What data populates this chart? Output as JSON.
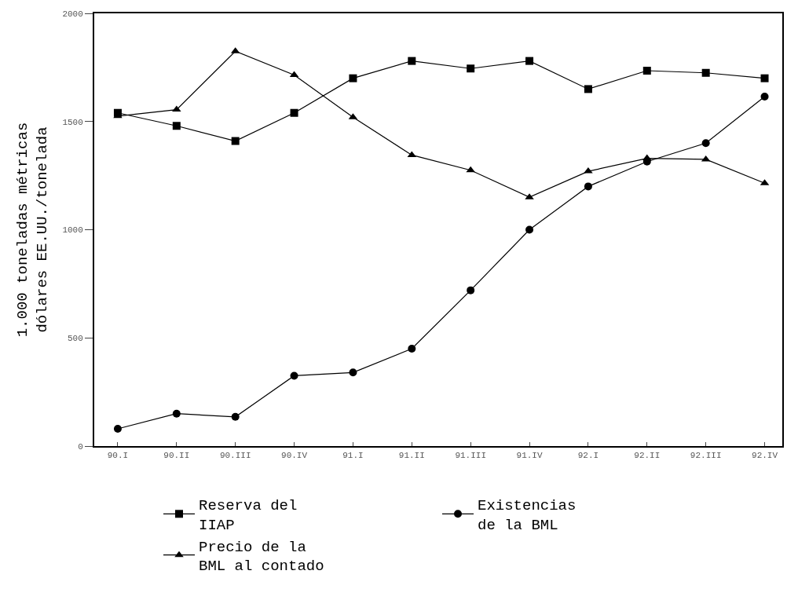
{
  "chart_data": {
    "type": "line",
    "ylabel": "1.000 toneladas métricas\ndólares EE.UU./tonelada",
    "categories": [
      "90.I",
      "90.II",
      "90.III",
      "90.IV",
      "91.I",
      "91.II",
      "91.III",
      "91.IV",
      "92.I",
      "92.II",
      "92.III",
      "92.IV"
    ],
    "series": [
      {
        "name": "Reserva del\nIIAP",
        "color": "#000000",
        "marker": "square",
        "values": [
          1540,
          1480,
          1410,
          1540,
          1700,
          1780,
          1745,
          1780,
          1650,
          1735,
          1725,
          1700
        ]
      },
      {
        "name": "Existencias\nde la BML",
        "color": "#000000",
        "marker": "circle",
        "values": [
          80,
          150,
          135,
          325,
          340,
          450,
          720,
          1000,
          1200,
          1315,
          1400,
          1615
        ]
      },
      {
        "name": "Precio de la\nBML al contado",
        "color": "#000000",
        "marker": "triangle",
        "values": [
          1525,
          1555,
          1825,
          1715,
          1520,
          1345,
          1275,
          1150,
          1270,
          1330,
          1325,
          1215
        ]
      }
    ],
    "ylim": [
      0,
      2000
    ],
    "yticks": [
      0,
      500,
      1000,
      1500,
      2000
    ],
    "grid": false,
    "legend": "bottom",
    "line_style": "solid"
  }
}
